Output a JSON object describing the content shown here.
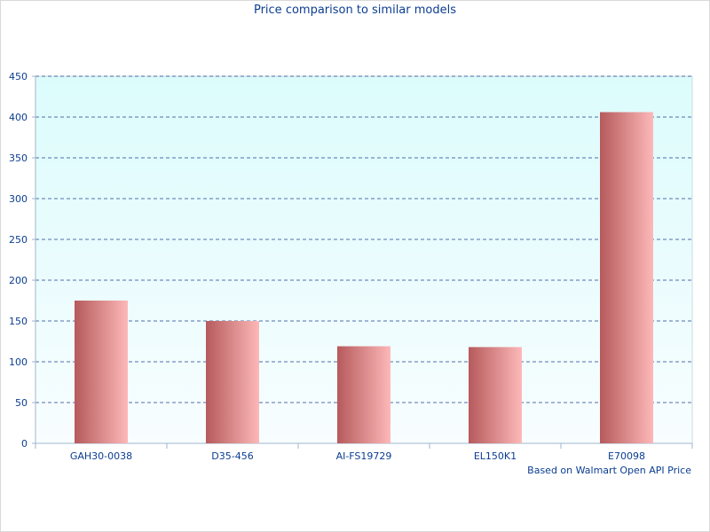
{
  "chart_data": {
    "type": "bar",
    "title": "Price comparison to similar models",
    "footnote": "Based on Walmart Open API Price",
    "categories": [
      "GAH30-0038",
      "D35-456",
      "AI-FS19729",
      "EL150K1",
      "E70098"
    ],
    "values": [
      175,
      150,
      119,
      118,
      406
    ],
    "ylim": [
      0,
      450
    ],
    "yticks": [
      "0",
      "50",
      "100",
      "150",
      "200",
      "250",
      "300",
      "350",
      "400",
      "450"
    ],
    "grid": true,
    "grid_style": "dashed",
    "legend": "none",
    "colors": {
      "bar_dark": "#b65a5c",
      "bar_light": "#fdb8b8",
      "plot_bg_top": "#dcfcfc",
      "plot_bg_bottom": "#f8fdff",
      "grid": "#1f3f8f",
      "text": "#0b3d91"
    }
  }
}
